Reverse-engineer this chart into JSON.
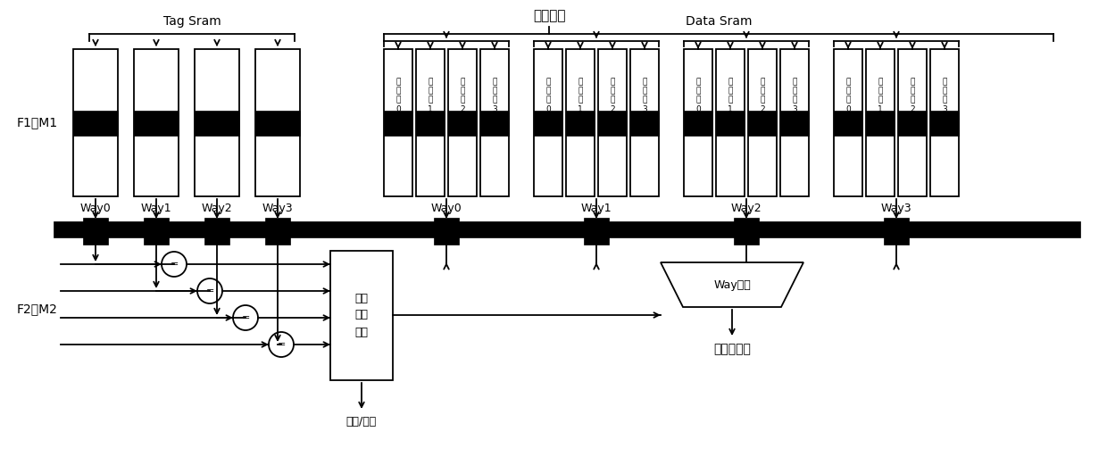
{
  "title": "访问地址",
  "tag_sram_label": "Tag Sram",
  "data_sram_label": "Data Sram",
  "f1_label": "F1或M1",
  "f2_label": "F2或M2",
  "way_labels_tag": [
    "Way0",
    "Way1",
    "Way2",
    "Way3"
  ],
  "way_labels_data": [
    "Way0",
    "Way1",
    "Way2",
    "Way3"
  ],
  "bank_labels_0": [
    "存",
    "储",
    "体",
    "0"
  ],
  "bank_labels_1": [
    "存",
    "储",
    "体",
    "1"
  ],
  "bank_labels_2": [
    "存",
    "储",
    "体",
    "2"
  ],
  "bank_labels_3": [
    "存",
    "储",
    "体",
    "3"
  ],
  "cmd_box_label": "命中\n判断\n逻辑",
  "way_select_label": "Way选择",
  "hit_label": "命中/缺失",
  "result_label": "指令或数据",
  "bg_color": "#ffffff",
  "line_color": "#000000"
}
